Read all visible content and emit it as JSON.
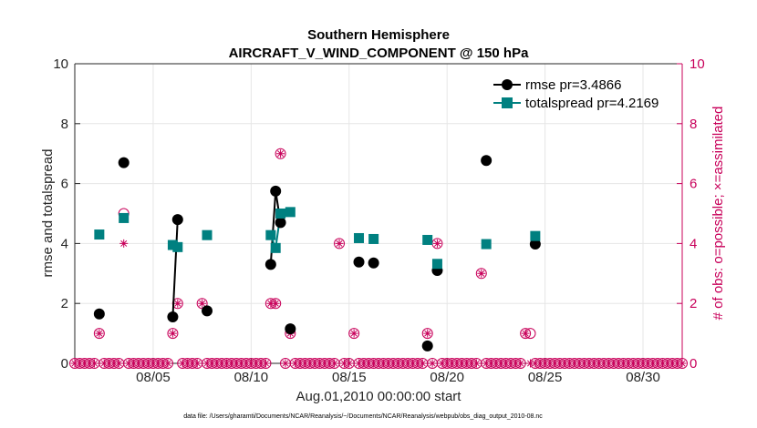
{
  "chart_data": {
    "type": "line",
    "title": "Southern Hemisphere",
    "subtitle": "AIRCRAFT_V_WIND_COMPONENT @ 150 hPa",
    "xlabel": "Aug.01,2010 00:00:00 start",
    "ylabel": "rmse and totalspread",
    "y2label": "# of obs: o=possible; ×=assimilated",
    "x_ticks": [
      5,
      10,
      15,
      20,
      25,
      30
    ],
    "x_tick_labels": [
      "08/05",
      "08/10",
      "08/15",
      "08/20",
      "08/25",
      "08/30"
    ],
    "xlim": [
      1,
      32
    ],
    "ylim": [
      0,
      10
    ],
    "y_ticks": [
      0,
      2,
      4,
      6,
      8,
      10
    ],
    "y2lim": [
      0,
      10
    ],
    "y2_ticks": [
      0,
      2,
      4,
      6,
      8,
      10
    ],
    "grid": true,
    "legend_position": "top-right",
    "colors": {
      "rmse": "#000000",
      "spread": "#008080",
      "obs": "#c8005a",
      "axis": "#262626",
      "grid": "#e6e6e6"
    },
    "series": [
      {
        "name": "rmse pr=3.4866",
        "marker": "circle",
        "points": [
          [
            2.25,
            1.65
          ],
          [
            3.5,
            6.7
          ],
          [
            6.0,
            1.55
          ],
          [
            6.25,
            4.8
          ],
          [
            7.75,
            1.75
          ],
          [
            11.0,
            3.3
          ],
          [
            11.25,
            5.75
          ],
          [
            11.5,
            4.7
          ],
          [
            12.0,
            1.15
          ],
          [
            15.5,
            3.38
          ],
          [
            16.25,
            3.35
          ],
          [
            19.0,
            0.58
          ],
          [
            19.5,
            3.1
          ],
          [
            22.0,
            6.77
          ],
          [
            24.5,
            3.98
          ]
        ],
        "segments": [
          [
            [
              6.0,
              1.55
            ],
            [
              6.25,
              4.8
            ]
          ],
          [
            [
              11.0,
              3.3
            ],
            [
              11.25,
              5.75
            ],
            [
              11.5,
              4.7
            ]
          ]
        ]
      },
      {
        "name": "totalspread pr=4.2169",
        "marker": "square",
        "points": [
          [
            2.25,
            4.3
          ],
          [
            3.5,
            4.85
          ],
          [
            6.0,
            3.95
          ],
          [
            6.25,
            3.88
          ],
          [
            7.75,
            4.28
          ],
          [
            11.0,
            4.28
          ],
          [
            11.25,
            3.85
          ],
          [
            11.5,
            5.0
          ],
          [
            12.0,
            5.05
          ],
          [
            15.5,
            4.18
          ],
          [
            16.25,
            4.15
          ],
          [
            19.0,
            4.12
          ],
          [
            19.5,
            3.32
          ],
          [
            22.0,
            3.98
          ],
          [
            24.5,
            4.25
          ]
        ],
        "segments": [
          [
            [
              6.0,
              3.95
            ],
            [
              6.25,
              3.88
            ]
          ],
          [
            [
              11.0,
              4.28
            ],
            [
              11.25,
              3.85
            ],
            [
              11.5,
              5.0
            ]
          ]
        ]
      }
    ],
    "obs_x_start": 1.0,
    "obs_x_step": 0.25,
    "obs_possible": [
      0,
      0,
      0,
      0,
      0,
      1,
      0,
      0,
      0,
      0,
      5,
      0,
      0,
      0,
      0,
      0,
      0,
      0,
      0,
      0,
      1,
      2,
      0,
      0,
      0,
      0,
      2,
      0,
      0,
      0,
      0,
      0,
      0,
      0,
      0,
      0,
      0,
      0,
      0,
      0,
      2,
      2,
      7,
      0,
      1,
      0,
      0,
      0,
      0,
      0,
      0,
      0,
      0,
      0,
      4,
      0,
      0,
      1,
      0,
      0,
      0,
      0,
      0,
      0,
      0,
      0,
      0,
      0,
      0,
      0,
      0,
      0,
      1,
      0,
      4,
      0,
      0,
      0,
      0,
      0,
      0,
      0,
      0,
      3,
      0,
      0,
      0,
      0,
      0,
      0,
      0,
      0,
      1,
      1,
      0,
      0,
      0,
      0,
      0,
      0,
      0,
      0,
      0,
      0,
      0,
      0,
      0,
      0,
      0,
      0,
      0,
      0,
      0,
      0,
      0,
      0,
      0,
      0,
      0,
      0,
      0,
      0,
      0,
      0,
      0
    ],
    "obs_assimilated": [
      0,
      0,
      0,
      0,
      0,
      1,
      0,
      0,
      0,
      0,
      4,
      0,
      0,
      0,
      0,
      0,
      0,
      0,
      0,
      0,
      1,
      2,
      0,
      0,
      0,
      0,
      2,
      0,
      0,
      0,
      0,
      0,
      0,
      0,
      0,
      0,
      0,
      0,
      0,
      0,
      2,
      2,
      7,
      0,
      1,
      0,
      0,
      0,
      0,
      0,
      0,
      0,
      0,
      0,
      4,
      0,
      0,
      1,
      0,
      0,
      0,
      0,
      0,
      0,
      0,
      0,
      0,
      0,
      0,
      0,
      0,
      0,
      1,
      0,
      4,
      0,
      0,
      0,
      0,
      0,
      0,
      0,
      0,
      3,
      0,
      0,
      0,
      0,
      0,
      0,
      0,
      0,
      1,
      0,
      0,
      0,
      0,
      0,
      0,
      0,
      0,
      0,
      0,
      0,
      0,
      0,
      0,
      0,
      0,
      0,
      0,
      0,
      0,
      0,
      0,
      0,
      0,
      0,
      0,
      0,
      0,
      0,
      0,
      0,
      0
    ],
    "footnote": "data file: /Users/gharamti/Documents/NCAR/Reanalysis/~/Documents/NCAR/Reanalysis/webpub/obs_diag_output_2010-08.nc"
  }
}
